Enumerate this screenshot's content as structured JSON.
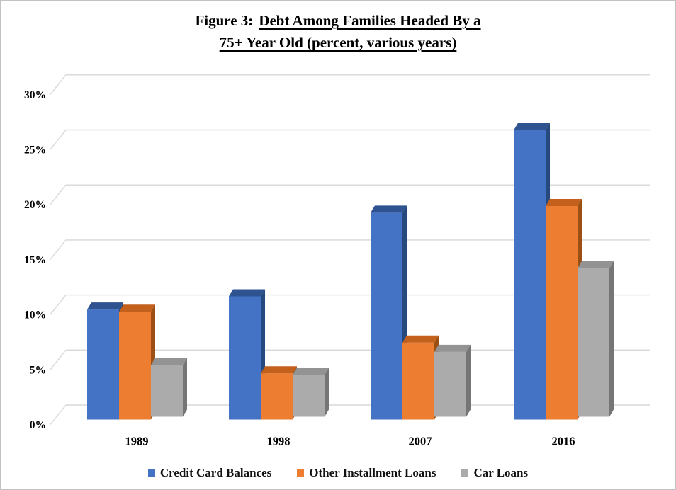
{
  "figure": {
    "title_prefix": "Figure 3:",
    "title_line1": "Debt Among Families Headed By a",
    "title_line2": "75+ Year Old (percent, various years)"
  },
  "chart_data": {
    "type": "bar",
    "style": "3d-clustered-column",
    "title": "Figure 3: Debt Among Families Headed By a 75+ Year Old (percent, various years)",
    "xlabel": "",
    "ylabel": "",
    "categories": [
      "1989",
      "1998",
      "2007",
      "2016"
    ],
    "series": [
      {
        "name": "Credit Card Balances",
        "values": [
          10.0,
          11.2,
          18.8,
          26.3
        ],
        "color": {
          "front": "#4472C4",
          "top": "#2F5391",
          "side": "#264A7E"
        }
      },
      {
        "name": "Other Installment Loans",
        "values": [
          9.8,
          4.2,
          7.0,
          19.4
        ],
        "color": {
          "front": "#ED7D31",
          "top": "#C2601C",
          "side": "#9A5015"
        }
      },
      {
        "name": "Car Loans",
        "values": [
          4.7,
          3.8,
          5.9,
          13.5
        ],
        "color": {
          "front": "#ABABAB",
          "top": "#939393",
          "side": "#757575"
        }
      }
    ],
    "ylim": [
      0,
      30
    ],
    "y_tick_step": 5,
    "y_tick_labels": [
      "0%",
      "5%",
      "10%",
      "15%",
      "20%",
      "25%",
      "30%"
    ],
    "grid": true,
    "gridline_color": "#d8d8d8",
    "legend_position": "bottom"
  }
}
